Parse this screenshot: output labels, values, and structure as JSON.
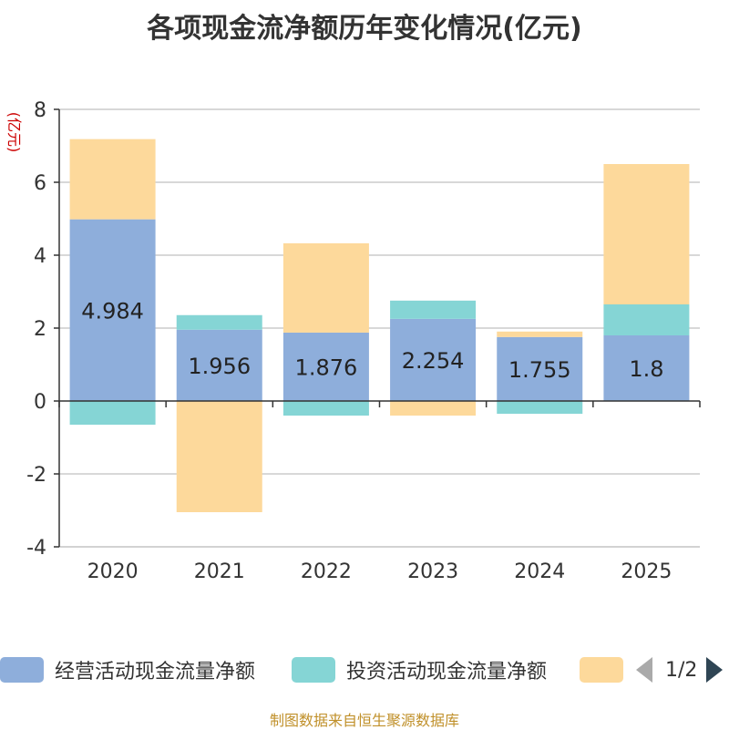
{
  "title": "各项现金流净额历年变化情况(亿元)",
  "source": "制图数据来自恒生聚源数据库",
  "legend": {
    "items": [
      {
        "label": "经营活动现金流量净额",
        "color": "#8eaedb"
      },
      {
        "label": "投资活动现金流量净额",
        "color": "#85d5d5"
      },
      {
        "label": "",
        "color": "#fdd99b"
      }
    ],
    "page": "1/2"
  },
  "chart_data": {
    "type": "bar",
    "stacked": true,
    "title": "各项现金流净额历年变化情况(亿元)",
    "ylabel": "(亿元)",
    "ylim": [
      -4,
      8
    ],
    "yticks": [
      -4,
      -2,
      0,
      2,
      4,
      6,
      8
    ],
    "categories": [
      "2020",
      "2021",
      "2022",
      "2023",
      "2024",
      "2025"
    ],
    "series": [
      {
        "name": "经营活动现金流量净额",
        "color": "#8eaedb",
        "values": [
          4.984,
          1.956,
          1.876,
          2.254,
          1.755,
          1.8
        ],
        "labels": [
          "4.984",
          "1.956",
          "1.876",
          "2.254",
          "1.755",
          "1.8"
        ]
      },
      {
        "name": "投资活动现金流量净额",
        "color": "#85d5d5",
        "values": [
          -0.65,
          0.4,
          -0.4,
          0.5,
          -0.35,
          0.85
        ]
      },
      {
        "name": "",
        "color": "#fdd99b",
        "values": [
          2.2,
          -3.05,
          2.45,
          -0.4,
          0.15,
          3.85
        ]
      }
    ]
  }
}
